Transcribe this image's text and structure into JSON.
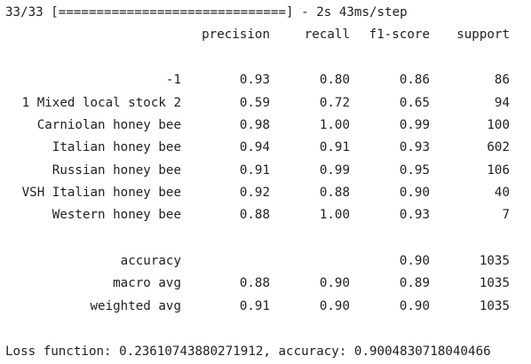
{
  "progress_line": "33/33 [==============================] - 2s 43ms/step",
  "headers": {
    "precision": "precision",
    "recall": "recall",
    "f1": "f1-score",
    "support": "support"
  },
  "rows": [
    {
      "label": "-1",
      "precision": "0.93",
      "recall": "0.80",
      "f1": "0.86",
      "support": "86"
    },
    {
      "label": "1 Mixed local stock 2",
      "precision": "0.59",
      "recall": "0.72",
      "f1": "0.65",
      "support": "94"
    },
    {
      "label": "Carniolan honey bee",
      "precision": "0.98",
      "recall": "1.00",
      "f1": "0.99",
      "support": "100"
    },
    {
      "label": "Italian honey bee",
      "precision": "0.94",
      "recall": "0.91",
      "f1": "0.93",
      "support": "602"
    },
    {
      "label": "Russian honey bee",
      "precision": "0.91",
      "recall": "0.99",
      "f1": "0.95",
      "support": "106"
    },
    {
      "label": "VSH Italian honey bee",
      "precision": "0.92",
      "recall": "0.88",
      "f1": "0.90",
      "support": "40"
    },
    {
      "label": "Western honey bee",
      "precision": "0.88",
      "recall": "1.00",
      "f1": "0.93",
      "support": "7"
    }
  ],
  "summary": [
    {
      "label": "accuracy",
      "precision": "",
      "recall": "",
      "f1": "0.90",
      "support": "1035"
    },
    {
      "label": "macro avg",
      "precision": "0.88",
      "recall": "0.90",
      "f1": "0.89",
      "support": "1035"
    },
    {
      "label": "weighted avg",
      "precision": "0.91",
      "recall": "0.90",
      "f1": "0.90",
      "support": "1035"
    }
  ],
  "final_line": "Loss function: 0.23610743880271912, accuracy: 0.9004830718040466"
}
